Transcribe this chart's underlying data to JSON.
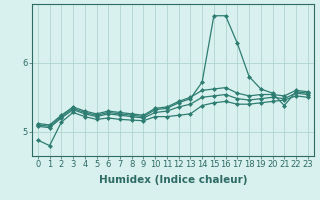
{
  "xlabel": "Humidex (Indice chaleur)",
  "x": [
    0,
    1,
    2,
    3,
    4,
    5,
    6,
    7,
    8,
    9,
    10,
    11,
    12,
    13,
    14,
    15,
    16,
    17,
    18,
    19,
    20,
    21,
    22,
    23
  ],
  "lines": [
    {
      "y": [
        4.88,
        4.8,
        5.14,
        5.28,
        5.22,
        5.18,
        5.2,
        5.18,
        5.17,
        5.16,
        5.22,
        5.22,
        5.24,
        5.26,
        5.38,
        5.42,
        5.44,
        5.4,
        5.4,
        5.42,
        5.44,
        5.46,
        5.52,
        5.5
      ]
    },
    {
      "y": [
        5.08,
        5.06,
        5.2,
        5.32,
        5.26,
        5.22,
        5.26,
        5.24,
        5.22,
        5.2,
        5.28,
        5.3,
        5.36,
        5.4,
        5.5,
        5.52,
        5.54,
        5.48,
        5.46,
        5.48,
        5.5,
        5.48,
        5.56,
        5.54
      ]
    },
    {
      "y": [
        5.12,
        5.1,
        5.24,
        5.36,
        5.3,
        5.26,
        5.3,
        5.28,
        5.26,
        5.24,
        5.34,
        5.36,
        5.44,
        5.5,
        5.6,
        5.62,
        5.64,
        5.56,
        5.52,
        5.54,
        5.54,
        5.52,
        5.6,
        5.58
      ]
    },
    {
      "y": [
        5.1,
        5.08,
        5.22,
        5.34,
        5.28,
        5.24,
        5.28,
        5.26,
        5.24,
        5.22,
        5.32,
        5.34,
        5.42,
        5.48,
        5.72,
        6.68,
        6.68,
        6.28,
        5.8,
        5.62,
        5.56,
        5.38,
        5.58,
        5.56
      ]
    }
  ],
  "line_color": "#2e7d72",
  "marker": "D",
  "marker_size": 2.0,
  "line_width": 0.9,
  "bg_color": "#d8f0ee",
  "grid_color": "#aacfcc",
  "axis_color": "#2e6b65",
  "ylim": [
    4.65,
    6.85
  ],
  "yticks": [
    5.0,
    6.0
  ],
  "xlim": [
    -0.5,
    23.5
  ],
  "tick_fontsize": 6,
  "label_fontsize": 7.5
}
